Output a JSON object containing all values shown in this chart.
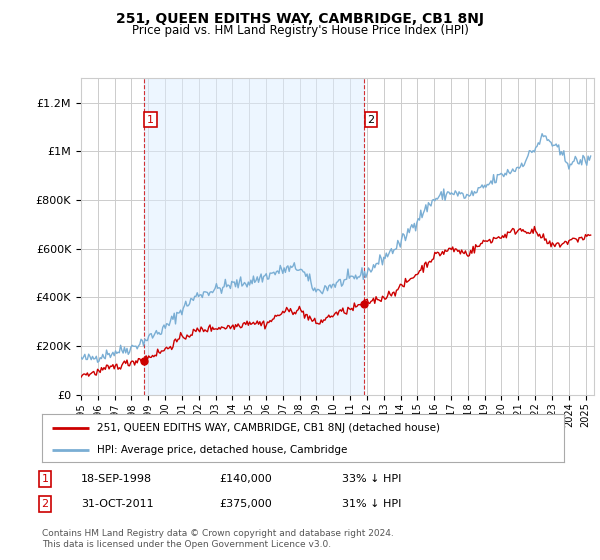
{
  "title": "251, QUEEN EDITHS WAY, CAMBRIDGE, CB1 8NJ",
  "subtitle": "Price paid vs. HM Land Registry's House Price Index (HPI)",
  "legend_label_red": "251, QUEEN EDITHS WAY, CAMBRIDGE, CB1 8NJ (detached house)",
  "legend_label_blue": "HPI: Average price, detached house, Cambridge",
  "annotation1_date": "18-SEP-1998",
  "annotation1_price": "£140,000",
  "annotation1_hpi": "33% ↓ HPI",
  "annotation2_date": "31-OCT-2011",
  "annotation2_price": "£375,000",
  "annotation2_hpi": "31% ↓ HPI",
  "footer": "Contains HM Land Registry data © Crown copyright and database right 2024.\nThis data is licensed under the Open Government Licence v3.0.",
  "red_color": "#cc0000",
  "blue_color": "#7aaed4",
  "blue_fill": "#ddeeff",
  "vline_color": "#cc0000",
  "background_color": "#ffffff",
  "grid_color": "#cccccc",
  "ylim": [
    0,
    1300000
  ],
  "yticks": [
    0,
    200000,
    400000,
    600000,
    800000,
    1000000,
    1200000
  ],
  "ytick_labels": [
    "£0",
    "£200K",
    "£400K",
    "£600K",
    "£800K",
    "£1M",
    "£1.2M"
  ],
  "sale1_year": 1998.72,
  "sale1_price": 140000,
  "sale2_year": 2011.83,
  "sale2_price": 375000,
  "xmin": 1995,
  "xmax": 2025.5
}
